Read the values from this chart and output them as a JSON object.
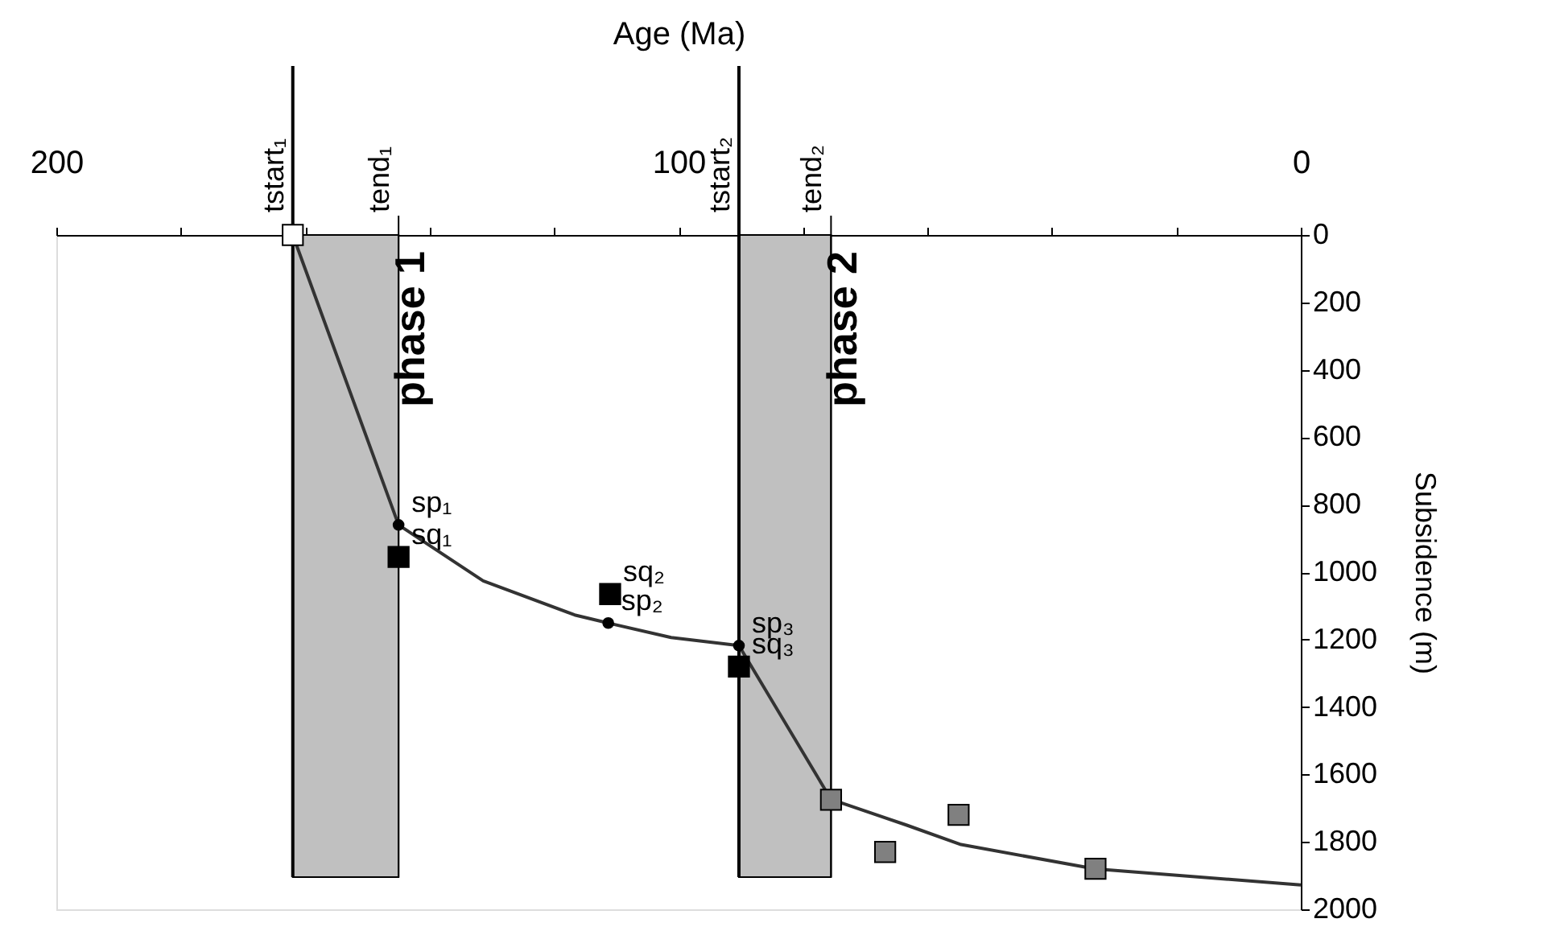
{
  "chart_data": {
    "type": "line",
    "xlabel": "Age (Ma)",
    "ylabel": "Subsidence (m)",
    "xlim": [
      200,
      0
    ],
    "ylim": [
      2000,
      0
    ],
    "xticks": [
      200,
      {
        "value": 180,
        "label": null
      },
      {
        "value": 160,
        "label": null
      },
      {
        "value": 140,
        "label": null
      },
      {
        "value": 120,
        "label": null
      },
      100,
      {
        "value": 80,
        "label": null
      },
      {
        "value": 60,
        "label": null
      },
      {
        "value": 40,
        "label": null
      },
      {
        "value": 20,
        "label": null
      },
      0
    ],
    "yticks": [
      0,
      200,
      400,
      600,
      800,
      1000,
      1200,
      1400,
      1600,
      1800,
      2000
    ],
    "grid": false,
    "series": [
      {
        "color": "#333333",
        "marker": "none",
        "x": [
          162,
          145,
          131.4,
          116.7,
          111.3,
          101.2,
          90.3,
          75.5,
          63.4,
          54.6,
          33.1,
          0
        ],
        "values": [
          0,
          860,
          1026,
          1127,
          1151,
          1194,
          1218,
          1674,
          1750,
          1808,
          1880,
          1928
        ]
      },
      {
        "type": "scatter",
        "color": "#000000",
        "marker": "circle",
        "x": [
          145,
          111.3,
          90.3
        ],
        "values": [
          860,
          1151,
          1218
        ]
      },
      {
        "type": "scatter",
        "color": "#ffffff",
        "marker": "square",
        "x": [
          162
        ],
        "values": [
          0
        ]
      },
      {
        "type": "scatter",
        "color": "#000000",
        "marker": "square",
        "x": [
          145,
          111,
          90.3
        ],
        "values": [
          955,
          1065,
          1280
        ]
      },
      {
        "type": "scatter",
        "color": "#808080",
        "marker": "square",
        "x": [
          75.5,
          66.8,
          55,
          33
        ],
        "values": [
          1675,
          1830,
          1720,
          1880
        ]
      }
    ],
    "bands": [
      {
        "axis": "x",
        "from": 162,
        "to": 145,
        "label": "phase 1",
        "color": "#c0c0c0"
      },
      {
        "axis": "x",
        "from": 90.3,
        "to": 75.5,
        "label": "phase 2",
        "color": "#c0c0c0"
      }
    ],
    "ref_lines": [
      {
        "axis": "x",
        "value": 162,
        "label": "tstart₁"
      },
      {
        "axis": "x",
        "value": 145,
        "label": "tend₁"
      },
      {
        "axis": "x",
        "value": 90.3,
        "label": "tstart₂"
      },
      {
        "axis": "x",
        "value": 75.5,
        "label": "tend₂"
      }
    ],
    "annotations": [
      {
        "text": "sp₁",
        "x": 145,
        "y": 860
      },
      {
        "text": "sq₁",
        "x": 145,
        "y": 955
      },
      {
        "text": "sq₂",
        "x": 111,
        "y": 1065
      },
      {
        "text": "sp₂",
        "x": 111.3,
        "y": 1151
      },
      {
        "text": "sp₃",
        "x": 90.3,
        "y": 1218
      },
      {
        "text": "sq₃",
        "x": 90.3,
        "y": 1280
      }
    ]
  }
}
